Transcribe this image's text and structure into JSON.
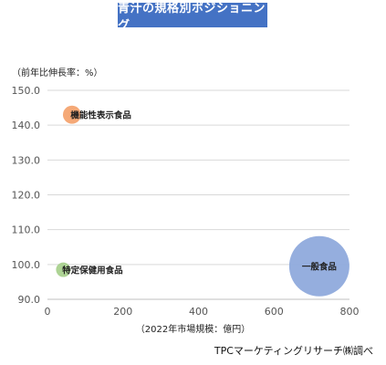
{
  "title": "青汁の規格別ポジショニング",
  "ylabel": "（前年比伸長率：%）",
  "xlabel": "（2022年市場規模：億円）",
  "source": "TPCマーケティングリサーチ㈱調べ",
  "colors": {
    "banner": "#4472c4",
    "bubbles": [
      "#f4a470",
      "#a9d18e",
      "#8faadc"
    ]
  },
  "chart_data": {
    "type": "bubble",
    "title": "青汁の規格別ポジショニング",
    "xlabel": "（2022年市場規模：億円）",
    "ylabel": "（前年比伸長率：%）",
    "xlim": [
      0,
      800
    ],
    "ylim": [
      90,
      150
    ],
    "xticks": [
      "0",
      "200",
      "400",
      "600",
      "800"
    ],
    "yticks": [
      "90.0",
      "100.0",
      "110.0",
      "120.0",
      "130.0",
      "140.0",
      "150.0"
    ],
    "grid": "horizontal",
    "points": [
      {
        "name": "機能性表示食品",
        "x": 65,
        "y": 143.0,
        "size": 65
      },
      {
        "name": "特定保健用食品",
        "x": 42,
        "y": 98.5,
        "size": 42
      },
      {
        "name": "一般食品",
        "x": 720,
        "y": 99.5,
        "size": 720
      }
    ]
  }
}
